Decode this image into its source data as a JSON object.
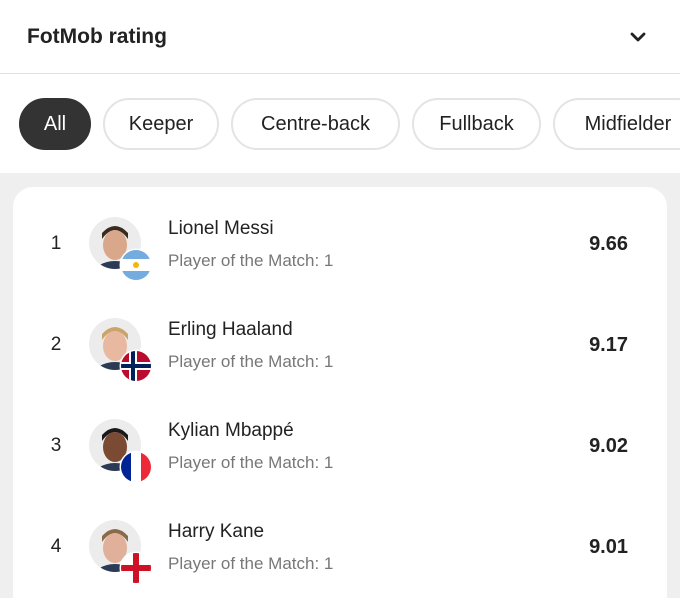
{
  "header": {
    "title": "FotMob rating"
  },
  "tabs": [
    "All",
    "Keeper",
    "Centre-back",
    "Fullback",
    "Midfielder"
  ],
  "rows": [
    {
      "rank": 1,
      "name": "Lionel Messi",
      "subtitle": "Player of the Match: 1",
      "rating": 9.66
    },
    {
      "rank": 2,
      "name": "Erling Haaland",
      "subtitle": "Player of the Match: 1",
      "rating": 9.17
    },
    {
      "rank": 3,
      "name": "Kylian Mbappé",
      "subtitle": "Player of the Match: 1",
      "rating": 9.02
    },
    {
      "rank": 4,
      "name": "Harry Kane",
      "subtitle": "Player of the Match: 1",
      "rating": 9.01
    }
  ]
}
